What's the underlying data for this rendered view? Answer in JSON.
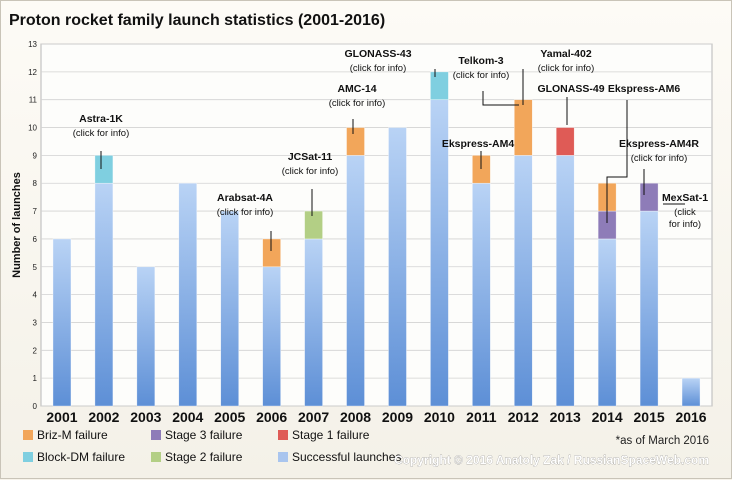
{
  "chart_data": {
    "type": "bar",
    "stacked": true,
    "title": "Proton rocket family launch statistics (2001-2016)",
    "ylabel": "Number of launches",
    "xlabel": "",
    "ylim": [
      0,
      13
    ],
    "yticks": [
      0,
      1,
      2,
      3,
      4,
      5,
      6,
      7,
      8,
      9,
      10,
      11,
      12,
      13
    ],
    "grid": true,
    "categories": [
      "2001",
      "2002",
      "2003",
      "2004",
      "2005",
      "2006",
      "2007",
      "2008",
      "2009",
      "2010",
      "2011",
      "2012",
      "2013",
      "2014",
      "2015",
      "2016"
    ],
    "series": [
      {
        "name": "Successful launches",
        "key": "success",
        "color": "#a9c5ee",
        "values": [
          6,
          8,
          5,
          8,
          7,
          5,
          6,
          9,
          10,
          11,
          8,
          9,
          9,
          6,
          7,
          1
        ]
      },
      {
        "name": "Stage 3 failure",
        "key": "stage3",
        "color": "#8e7cb8",
        "values": [
          0,
          0,
          0,
          0,
          0,
          0,
          0,
          0,
          0,
          0,
          0,
          0,
          0,
          1,
          1,
          0
        ]
      },
      {
        "name": "Briz-M failure",
        "key": "brizm",
        "color": "#f2a65a",
        "values": [
          0,
          0,
          0,
          0,
          0,
          1,
          0,
          1,
          0,
          0,
          1,
          2,
          0,
          1,
          0,
          0
        ]
      },
      {
        "name": "Stage 2 failure",
        "key": "stage2",
        "color": "#b3cf85",
        "values": [
          0,
          0,
          0,
          0,
          0,
          0,
          1,
          0,
          0,
          0,
          0,
          0,
          0,
          0,
          0,
          0
        ]
      },
      {
        "name": "Stage 1 failure",
        "key": "stage1",
        "color": "#df5b56",
        "values": [
          0,
          0,
          0,
          0,
          0,
          0,
          0,
          0,
          0,
          0,
          0,
          0,
          1,
          0,
          0,
          0
        ]
      },
      {
        "name": "Block-DM failure",
        "key": "blockdm",
        "color": "#7fcfe0",
        "values": [
          0,
          1,
          0,
          0,
          0,
          0,
          0,
          0,
          0,
          1,
          0,
          0,
          0,
          0,
          0,
          0
        ]
      }
    ],
    "legend": {
      "placement": "bottom",
      "items": [
        {
          "label": "Briz-M failure",
          "key": "brizm"
        },
        {
          "label": "Stage 3 failure",
          "key": "stage3"
        },
        {
          "label": "Stage 1 failure",
          "key": "stage1"
        },
        {
          "label": "Block-DM failure",
          "key": "blockdm"
        },
        {
          "label": "Stage 2 failure",
          "key": "stage2"
        },
        {
          "label": "Successful launches",
          "key": "success"
        }
      ]
    },
    "annotations": [
      {
        "name": "Astra-1K",
        "sub": [
          "(click for info)"
        ],
        "year": "2002"
      },
      {
        "name": "Arabsat-4A",
        "sub": [
          "(click for info)"
        ],
        "year": "2006"
      },
      {
        "name": "JCSat-11",
        "sub": [
          "(click for info)"
        ],
        "year": "2007"
      },
      {
        "name": "AMC-14",
        "sub": [
          "(click for info)"
        ],
        "year": "2008"
      },
      {
        "name": "GLONASS-43",
        "sub": [
          "(click for info)"
        ],
        "year": "2010"
      },
      {
        "name": "Telkom-3",
        "sub": [
          "(click for info)"
        ],
        "year": "2012"
      },
      {
        "name": "Yamal-402",
        "sub": [
          "(click for info)"
        ],
        "year": "2012"
      },
      {
        "name": "Ekspress-AM4",
        "sub": [],
        "year": "2011"
      },
      {
        "name": "GLONASS-49",
        "sub": [],
        "year": "2013"
      },
      {
        "name": "Ekspress-AM6",
        "sub": [],
        "year": "2014"
      },
      {
        "name": "Ekspress-AM4R",
        "sub": [
          "(click for info)"
        ],
        "year": "2014"
      },
      {
        "name": "MexSat-1",
        "sub": [
          "(click",
          "for info)"
        ],
        "year": "2015"
      }
    ],
    "footnote": "*as of March 2016",
    "copyright": "Copyright © 2016 Anatoly Zak / RussianSpaceWeb.com"
  }
}
